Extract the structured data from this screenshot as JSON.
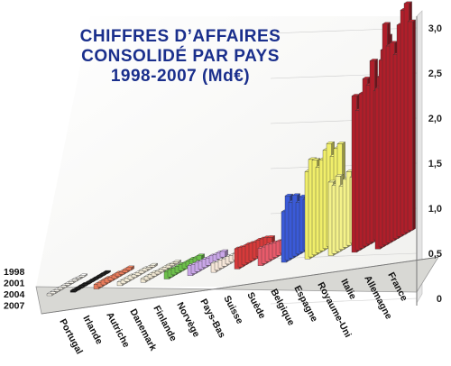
{
  "chart_data": {
    "type": "bar",
    "title_lines": [
      "CHIFFRES D’AFFAIRES",
      "CONSOLIDÉ PAR PAYS",
      "1998-2007 (Md€)"
    ],
    "categories": [
      "Portugal",
      "Irlande",
      "Autriche",
      "Danemark",
      "Finlande",
      "Norvège",
      "Pays-Bas",
      "Suisse",
      "Suède",
      "Belgique",
      "Espagne",
      "Royaume-Uni",
      "Italie",
      "Allemagne",
      "France"
    ],
    "series_labels": [
      "1998",
      "2001",
      "2004",
      "2007"
    ],
    "ylim": [
      0,
      3.0
    ],
    "yticks": [
      "0",
      "0,5",
      "1,0",
      "1,5",
      "2,0",
      "2,5",
      "3,0"
    ],
    "colors": {
      "Portugal": "#f4f1e8",
      "Irlande": "#111111",
      "Autriche": "#e87a5a",
      "Danemark": "#f2ead6",
      "Finlande": "#ede4cf",
      "Norvège": "#6cc04a",
      "Pays-Bas": "#c9a6e8",
      "Suisse": "#f5e6d8",
      "Suède": "#d63a3a",
      "Belgique": "#e85a6a",
      "Espagne": "#3a5ad8",
      "Royaume-Uni": "#f0ee6a",
      "Italie": "#f4f28a",
      "Allemagne": "#b01e2a",
      "France": "#b01e2a"
    },
    "values": [
      [
        0.01,
        0.01,
        0.02,
        0.02,
        0.02,
        0.02,
        0.02,
        0.02,
        0.02,
        0.02
      ],
      [
        0.01,
        0.01,
        0.01,
        0.01,
        0.01,
        0.01,
        0.02,
        0.02,
        0.02,
        0.02
      ],
      [
        0.03,
        0.03,
        0.03,
        0.04,
        0.04,
        0.04,
        0.05,
        0.05,
        0.05,
        0.05
      ],
      [
        0.02,
        0.02,
        0.03,
        0.03,
        0.03,
        0.03,
        0.04,
        0.04,
        0.04,
        0.04
      ],
      [
        0.02,
        0.02,
        0.03,
        0.03,
        0.03,
        0.03,
        0.04,
        0.04,
        0.04,
        0.04
      ],
      [
        0.05,
        0.05,
        0.06,
        0.06,
        0.06,
        0.07,
        0.07,
        0.07,
        0.08,
        0.08
      ],
      [
        0.06,
        0.07,
        0.07,
        0.08,
        0.08,
        0.09,
        0.09,
        0.1,
        0.1,
        0.11
      ],
      [
        0.05,
        0.06,
        0.06,
        0.07,
        0.07,
        0.08,
        0.08,
        0.09,
        0.09,
        0.1
      ],
      [
        0.14,
        0.16,
        0.17,
        0.18,
        0.18,
        0.19,
        0.2,
        0.2,
        0.21,
        0.22
      ],
      [
        0.12,
        0.13,
        0.14,
        0.14,
        0.15,
        0.16,
        0.17,
        0.18,
        0.18,
        0.19
      ],
      [
        0.7,
        0.62,
        0.6,
        0.55,
        0.6,
        0.56,
        0.66,
        0.61,
        0.7,
        0.55
      ],
      [
        1.05,
        1.02,
        0.96,
        1.12,
        1.07,
        0.99,
        0.93,
        1.03,
        1.06,
        0.95
      ],
      [
        0.74,
        0.76,
        0.7,
        0.72,
        0.8,
        0.74,
        0.69,
        0.82,
        0.74,
        0.8
      ],
      [
        2.15,
        2.02,
        1.75,
        1.62,
        1.97,
        1.73,
        1.82,
        1.68,
        1.52,
        1.7
      ],
      [
        2.27,
        2.49,
        2.44,
        2.3,
        2.0,
        2.15,
        2.14,
        2.4,
        2.03,
        1.75
      ]
    ]
  }
}
